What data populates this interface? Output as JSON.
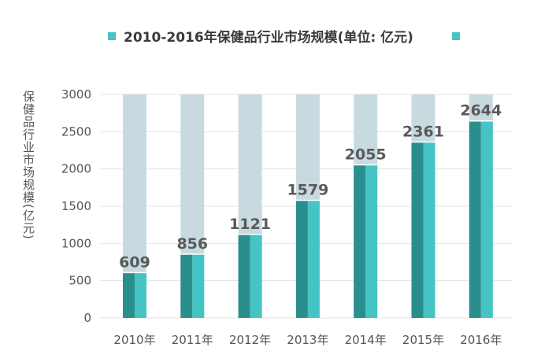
{
  "chart_data": {
    "type": "bar",
    "title": "2010-2016年保健品行业市场规模(单位: 亿元)",
    "ylabel": "保健品行业市场规模(亿元)",
    "xlabel": "",
    "categories": [
      "2010年",
      "2011年",
      "2012年",
      "2013年",
      "2014年",
      "2015年",
      "2016年"
    ],
    "values": [
      609,
      856,
      1121,
      1579,
      2055,
      2361,
      2644
    ],
    "data_labels": [
      "609",
      "856",
      "1121",
      "1579",
      "2055",
      "2361",
      "2644"
    ],
    "ylim": [
      0,
      3000
    ],
    "yticks": [
      0,
      500,
      1000,
      1500,
      2000,
      2500,
      3000
    ],
    "ytick_labels": [
      "0",
      "500",
      "1000",
      "1500",
      "2000",
      "2500",
      "3000"
    ],
    "grid": true,
    "legend": "top",
    "colors": {
      "bar_dark": "#2a8f8c",
      "bar_light": "#45c4c6",
      "background_column": "#c8dae0",
      "legend_marker": "#45c4c6",
      "grid": "#e3e3e3"
    }
  }
}
